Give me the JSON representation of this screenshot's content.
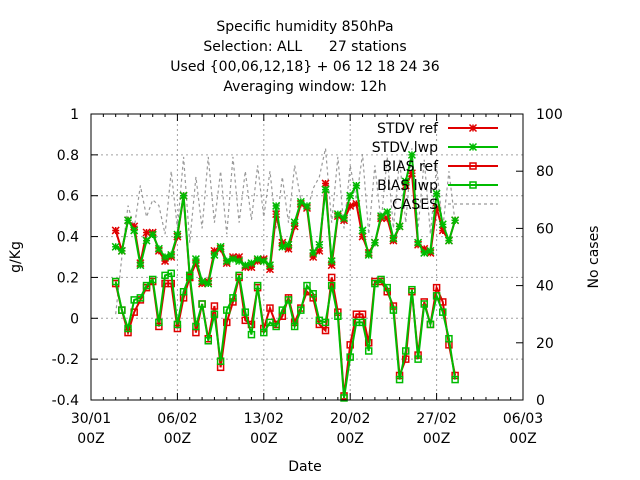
{
  "title_lines": [
    "Specific humidity 850hPa",
    "Selection: ALL      27 stations",
    "Used {00,06,12,18} + 06 12 18 24 36",
    "Averaging window: 12h"
  ],
  "chart_data": {
    "type": "line",
    "xlabel": "Date",
    "ylabel": "g/Kg",
    "y2label": "No cases",
    "ylim": [
      -0.4,
      1.0
    ],
    "y2lim": [
      0,
      100
    ],
    "xlim": [
      "2023-01-30T00",
      "2023-03-06T00"
    ],
    "x_ticks": [
      "30/01 00Z",
      "06/02 00Z",
      "13/02 00Z",
      "20/02 00Z",
      "27/02 00Z",
      "06/03 00Z"
    ],
    "y_ticks": [
      "-0.4",
      "-0.2",
      "0",
      "0.2",
      "0.4",
      "0.6",
      "0.8",
      "1"
    ],
    "y2_ticks": [
      "0",
      "20",
      "40",
      "60",
      "80",
      "100"
    ],
    "grid": true,
    "legend_position": "top-right",
    "x": [
      "02-01 00Z",
      "02-01 12Z",
      "02-02 00Z",
      "02-02 12Z",
      "02-03 00Z",
      "02-03 12Z",
      "02-04 00Z",
      "02-04 12Z",
      "02-05 00Z",
      "02-05 12Z",
      "02-06 00Z",
      "02-06 12Z",
      "02-07 00Z",
      "02-07 12Z",
      "02-08 00Z",
      "02-08 12Z",
      "02-09 00Z",
      "02-09 12Z",
      "02-10 00Z",
      "02-10 12Z",
      "02-11 00Z",
      "02-11 12Z",
      "02-12 00Z",
      "02-12 12Z",
      "02-13 00Z",
      "02-13 12Z",
      "02-14 00Z",
      "02-14 12Z",
      "02-15 00Z",
      "02-15 12Z",
      "02-16 00Z",
      "02-16 12Z",
      "02-17 00Z",
      "02-17 12Z",
      "02-18 00Z",
      "02-18 12Z",
      "02-19 00Z",
      "02-19 12Z",
      "02-20 00Z",
      "02-20 12Z",
      "02-21 00Z",
      "02-21 12Z",
      "02-22 00Z",
      "02-22 12Z",
      "02-23 00Z",
      "02-23 12Z",
      "02-24 00Z",
      "02-24 12Z",
      "02-25 00Z",
      "02-25 12Z",
      "02-26 00Z",
      "02-26 12Z",
      "02-27 00Z",
      "02-27 12Z",
      "02-28 00Z",
      "02-28 12Z"
    ],
    "series": [
      {
        "name": "STDV ref",
        "color": "#e00000",
        "marker": "star",
        "values": [
          0.43,
          0.33,
          0.48,
          0.45,
          0.27,
          0.42,
          0.42,
          0.33,
          0.28,
          0.3,
          0.4,
          0.6,
          0.2,
          0.27,
          0.17,
          0.18,
          0.33,
          0.34,
          0.27,
          0.3,
          0.3,
          0.25,
          0.25,
          0.28,
          0.29,
          0.24,
          0.51,
          0.37,
          0.34,
          0.45,
          0.56,
          0.54,
          0.3,
          0.33,
          0.66,
          0.26,
          0.5,
          0.48,
          0.55,
          0.56,
          0.4,
          0.32,
          0.37,
          0.49,
          0.49,
          0.38,
          0.45,
          0.65,
          0.71,
          0.36,
          0.34,
          0.32,
          0.54,
          0.43,
          0.38,
          0.48
        ]
      },
      {
        "name": "STDV lwp",
        "color": "#00bb00",
        "marker": "star",
        "values": [
          0.35,
          0.33,
          0.48,
          0.43,
          0.26,
          0.38,
          0.41,
          0.34,
          0.3,
          0.31,
          0.41,
          0.6,
          0.21,
          0.29,
          0.18,
          0.17,
          0.31,
          0.35,
          0.28,
          0.29,
          0.28,
          0.26,
          0.27,
          0.29,
          0.28,
          0.26,
          0.55,
          0.35,
          0.36,
          0.47,
          0.57,
          0.55,
          0.32,
          0.36,
          0.63,
          0.28,
          0.51,
          0.49,
          0.6,
          0.65,
          0.43,
          0.31,
          0.37,
          0.5,
          0.52,
          0.39,
          0.45,
          0.67,
          0.8,
          0.37,
          0.32,
          0.33,
          0.61,
          0.46,
          0.38,
          0.48
        ]
      },
      {
        "name": "BIAS ref",
        "color": "#e00000",
        "marker": "square",
        "values": [
          0.17,
          0.04,
          -0.07,
          0.03,
          0.09,
          0.15,
          0.18,
          -0.04,
          0.17,
          0.17,
          -0.05,
          0.1,
          0.2,
          -0.07,
          0.07,
          -0.1,
          0.06,
          -0.24,
          -0.02,
          0.08,
          0.2,
          -0.01,
          -0.03,
          0.15,
          -0.05,
          0.05,
          -0.03,
          0.01,
          0.1,
          -0.02,
          0.05,
          0.13,
          0.1,
          -0.03,
          -0.06,
          0.2,
          0.03,
          -0.38,
          -0.13,
          0.02,
          0.02,
          -0.12,
          0.18,
          0.18,
          0.13,
          0.06,
          -0.28,
          -0.2,
          0.13,
          -0.18,
          0.08,
          -0.03,
          0.15,
          0.08,
          -0.13,
          -0.28
        ]
      },
      {
        "name": "BIAS lwp",
        "color": "#00bb00",
        "marker": "square",
        "values": [
          0.18,
          0.04,
          -0.05,
          0.09,
          0.1,
          0.16,
          0.19,
          -0.02,
          0.21,
          0.22,
          -0.03,
          0.13,
          0.21,
          -0.04,
          0.07,
          -0.11,
          0.02,
          -0.21,
          0.04,
          0.1,
          0.21,
          0.03,
          -0.08,
          0.16,
          -0.07,
          -0.02,
          -0.04,
          0.04,
          0.09,
          -0.04,
          0.04,
          0.16,
          0.12,
          -0.01,
          -0.02,
          0.16,
          0.01,
          -0.39,
          -0.19,
          -0.02,
          -0.02,
          -0.16,
          0.17,
          0.19,
          0.15,
          0.04,
          -0.3,
          -0.16,
          0.14,
          -0.2,
          0.07,
          -0.03,
          0.11,
          0.03,
          -0.1,
          -0.3
        ]
      },
      {
        "name": "CASES",
        "color": "#999999",
        "marker": "none",
        "dashed": true,
        "values": [
          30,
          50,
          68,
          60,
          75,
          64,
          70,
          68,
          58,
          80,
          60,
          85,
          55,
          78,
          60,
          85,
          62,
          80,
          58,
          85,
          62,
          80,
          63,
          82,
          64,
          80,
          60,
          78,
          62,
          82,
          70,
          66,
          74,
          78,
          88,
          62,
          85,
          60,
          82,
          70,
          86,
          58,
          82,
          62,
          85,
          60,
          84,
          62,
          88,
          60,
          84,
          58,
          82,
          60,
          80,
          62
        ]
      }
    ]
  }
}
